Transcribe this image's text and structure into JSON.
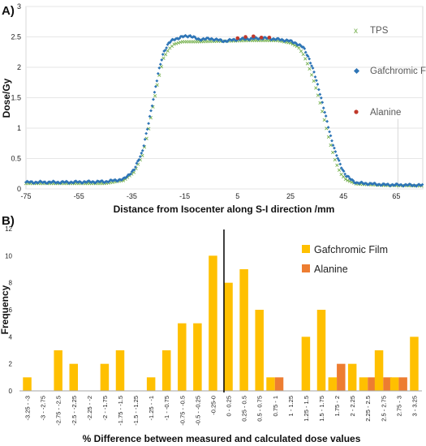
{
  "chart_data": [
    {
      "type": "scatter",
      "panel_label": "A)",
      "xlabel": "Distance from Isocenter along S-I direction /mm",
      "ylabel": "Dose/Gy",
      "xlim": [
        -75,
        75
      ],
      "ylim": [
        0,
        3
      ],
      "x_ticks": [
        "-75",
        "-55",
        "-35",
        "-15",
        "5",
        "25",
        "45",
        "65"
      ],
      "y_ticks": [
        "0",
        "0.5",
        "1",
        "1.5",
        "2",
        "2.5",
        "3"
      ],
      "legend_position": "right",
      "series": [
        {
          "name": "TPS",
          "color": "#70ad47",
          "marker": "x",
          "x": [
            -75,
            -60,
            -45,
            -38,
            -34,
            -31,
            -29,
            -27,
            -25,
            -23,
            -21,
            -19,
            -16,
            -10,
            0,
            10,
            20,
            25,
            28,
            30,
            32,
            34,
            36,
            38,
            40,
            42,
            44,
            46,
            50,
            60,
            75
          ],
          "y": [
            0.09,
            0.09,
            0.09,
            0.14,
            0.28,
            0.55,
            0.9,
            1.35,
            1.8,
            2.15,
            2.3,
            2.38,
            2.42,
            2.42,
            2.43,
            2.44,
            2.44,
            2.4,
            2.33,
            2.2,
            2.0,
            1.75,
            1.45,
            1.1,
            0.75,
            0.45,
            0.25,
            0.15,
            0.08,
            0.06,
            0.05
          ]
        },
        {
          "name": "Gafchromic Film",
          "color": "#2e75b6",
          "marker": "diamond",
          "x": [
            -75,
            -60,
            -45,
            -38,
            -34,
            -31,
            -29,
            -27,
            -25,
            -23,
            -21,
            -19,
            -16,
            -13,
            -10,
            -5,
            0,
            5,
            10,
            15,
            20,
            24,
            27,
            30,
            32,
            34,
            36,
            38,
            40,
            42,
            44,
            46,
            48,
            50,
            60,
            75
          ],
          "y": [
            0.11,
            0.11,
            0.12,
            0.16,
            0.32,
            0.62,
            1.0,
            1.45,
            1.9,
            2.25,
            2.4,
            2.46,
            2.5,
            2.52,
            2.46,
            2.47,
            2.43,
            2.46,
            2.47,
            2.48,
            2.46,
            2.44,
            2.4,
            2.32,
            2.15,
            1.9,
            1.6,
            1.25,
            0.9,
            0.6,
            0.38,
            0.22,
            0.15,
            0.1,
            0.07,
            0.06
          ]
        },
        {
          "name": "Alanine",
          "color": "#c0392b",
          "marker": "circle",
          "x": [
            5,
            8,
            11,
            14,
            17
          ],
          "y": [
            2.48,
            2.5,
            2.51,
            2.49,
            2.49
          ]
        }
      ]
    },
    {
      "type": "bar",
      "panel_label": "B)",
      "xlabel": "% Difference between measured and calculated dose values",
      "ylabel": "Frequency",
      "ylim": [
        0,
        12
      ],
      "y_ticks": [
        "0",
        "2",
        "4",
        "6",
        "8",
        "10",
        "12"
      ],
      "legend_position": "top-right",
      "categories": [
        "-3.25 - -3",
        "-3 - -2.75",
        "-2.75 - -2.5",
        "-2.5 - -2.25",
        "-2.25 - -2",
        "-2 - -1.75",
        "-1.75 - -1.5",
        "-1.5 - -1.25",
        "-1.25 - -1",
        "-1 - -0.75",
        "-0.75 - -0.5",
        "-0.5 - -0.25",
        "-0.25-0",
        "0 - 0.25",
        "0.25 - 0.5",
        "0.5 - 0.75",
        "0.75 - 1",
        "1 - 1.25",
        "1.25 - 1.5",
        "1.5 - 1.75",
        "1.75 - 2",
        "2 - 2.25",
        "2.25 - 2.5",
        "2.5 - 2.75",
        "2.75 - 3",
        "3 - 3.25"
      ],
      "series": [
        {
          "name": "Gafchromic Film",
          "color": "#ffc000",
          "values": [
            1,
            0,
            3,
            2,
            0,
            2,
            3,
            0,
            1,
            3,
            5,
            5,
            10,
            8,
            9,
            6,
            1,
            0,
            4,
            6,
            1,
            2,
            1,
            3,
            1,
            4
          ]
        },
        {
          "name": "Alanine",
          "color": "#ed7d31",
          "values": [
            0,
            0,
            0,
            0,
            0,
            0,
            0,
            0,
            0,
            0,
            0,
            0,
            0,
            0,
            0,
            0,
            1,
            0,
            0,
            0,
            2,
            0,
            1,
            1,
            1,
            0
          ]
        }
      ]
    }
  ]
}
